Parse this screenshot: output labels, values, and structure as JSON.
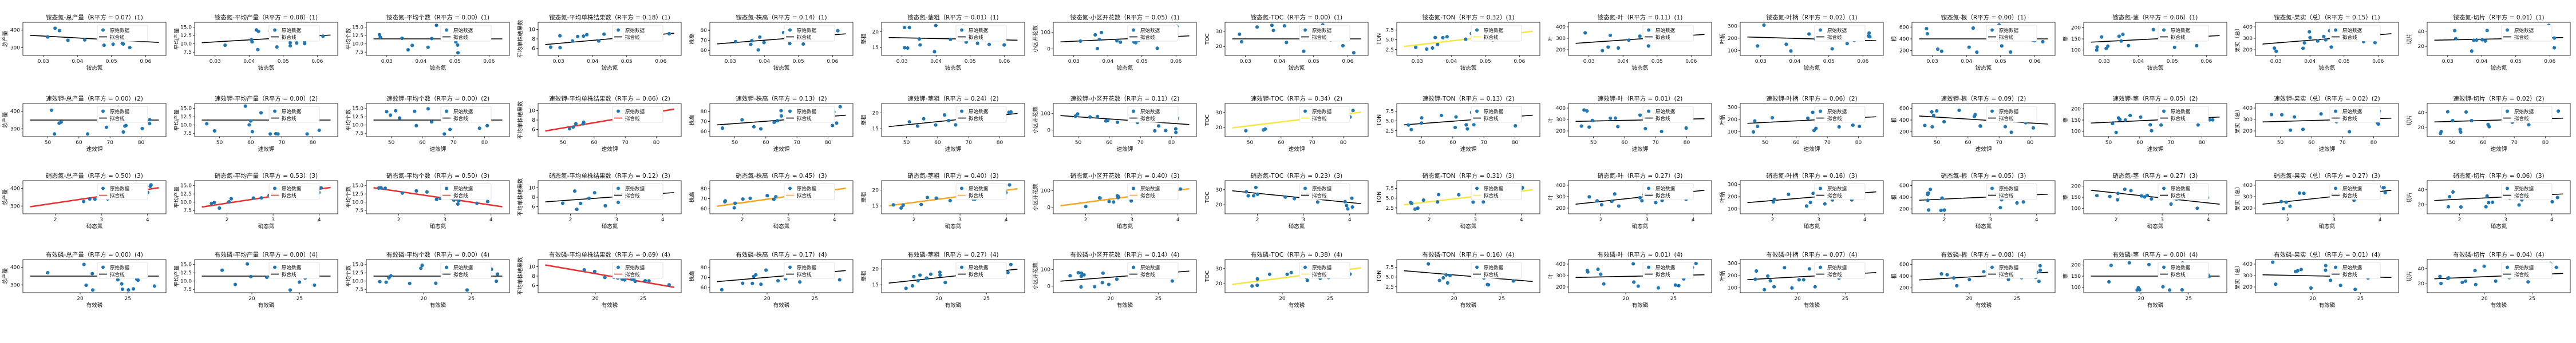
{
  "legend": {
    "raw_label": "原始数据",
    "fit_label": "拟合线"
  },
  "chart_data": {
    "type": "scatter",
    "rows": [
      {
        "xlabel": "铵态氮",
        "title_x": "铵态氮",
        "xticks": [
          "0.03",
          "0.04",
          "0.05",
          "0.06"
        ],
        "xlim": [
          0.024,
          0.066
        ]
      },
      {
        "xlabel": "速效钾",
        "title_x": "速效钾",
        "xticks": [
          "50",
          "60",
          "70",
          "80"
        ],
        "xlim": [
          42,
          88
        ]
      },
      {
        "xlabel": "硝态氮",
        "title_x": "硝态氮",
        "xticks": [
          "2",
          "3",
          "4"
        ],
        "xlim": [
          1.3,
          4.4
        ]
      },
      {
        "xlabel": "有效磷",
        "title_x": "有效磷",
        "xticks": [
          "20",
          "25"
        ],
        "xlim": [
          14,
          29
        ]
      }
    ],
    "cols": [
      {
        "ylabel": "总产量",
        "title_y": "总产量",
        "yticks": [
          "300",
          "400"
        ],
        "ylim": [
          255,
          445
        ]
      },
      {
        "ylabel": "平均产量",
        "title_y": "平均产量",
        "yticks": [
          "7.5",
          "10.0",
          "12.5",
          "15.0"
        ],
        "ylim": [
          6.5,
          16.5
        ]
      },
      {
        "ylabel": "平均个数",
        "title_y": "平均个数",
        "yticks": [
          "7.5",
          "10.0",
          "12.5",
          "15.0"
        ],
        "ylim": [
          6.5,
          16.5
        ]
      },
      {
        "ylabel": "平均单株结果数",
        "title_y": "平均单株结果数",
        "yticks": [
          "6",
          "8",
          "10"
        ],
        "ylim": [
          4.5,
          11.5
        ]
      },
      {
        "ylabel": "株高",
        "title_y": "株高",
        "yticks": [
          "60",
          "70",
          "80"
        ],
        "ylim": [
          55,
          88
        ]
      },
      {
        "ylabel": "茎粗",
        "title_y": "茎粗",
        "yticks": [
          "15",
          "20"
        ],
        "ylim": [
          12.5,
          23
        ]
      },
      {
        "ylabel": "小区开花数",
        "title_y": "小区开花数",
        "yticks": [
          "0",
          "100"
        ],
        "ylim": [
          -40,
          160
        ]
      },
      {
        "ylabel": "TOC",
        "title_y": "TOC",
        "yticks": [
          "20",
          "30"
        ],
        "ylim": [
          14,
          36
        ]
      },
      {
        "ylabel": "TON",
        "title_y": "TON",
        "yticks": [
          "2.5",
          "5.0",
          "7.5"
        ],
        "ylim": [
          1,
          9.5
        ]
      },
      {
        "ylabel": "叶",
        "title_y": "叶",
        "yticks": [
          "200",
          "300",
          "400"
        ],
        "ylim": [
          150,
          440
        ]
      },
      {
        "ylabel": "叶柄",
        "title_y": "叶柄",
        "yticks": [
          "100",
          "200",
          "300"
        ],
        "ylim": [
          60,
          330
        ]
      },
      {
        "ylabel": "根",
        "title_y": "根",
        "yticks": [
          "200",
          "400",
          "600"
        ],
        "ylim": [
          120,
          680
        ]
      },
      {
        "ylabel": "茎",
        "title_y": "茎",
        "yticks": [
          "100",
          "150",
          "200"
        ],
        "ylim": [
          75,
          225
        ]
      },
      {
        "ylabel": "果实（总）",
        "title_y": "果实（总）",
        "yticks": [
          "200",
          "300",
          "400"
        ],
        "ylim": [
          150,
          440
        ]
      },
      {
        "ylabel": "切片",
        "title_y": "切片",
        "yticks": [
          "20",
          "40"
        ],
        "ylim": [
          8,
          52
        ]
      }
    ],
    "r2": [
      [
        "0.07",
        "0.08",
        "0.00",
        "0.18",
        "0.14",
        "0.01",
        "0.05",
        "0.00",
        "0.32",
        "0.11",
        "0.02",
        "0.00",
        "0.06",
        "0.15",
        "0.01"
      ],
      [
        "0.00",
        "0.00",
        "0.00",
        "0.66",
        "0.13",
        "0.24",
        "0.11",
        "0.34",
        "0.13",
        "0.01",
        "0.06",
        "0.09",
        "0.05",
        "0.02",
        "0.02"
      ],
      [
        "0.50",
        "0.53",
        "0.50",
        "0.12",
        "0.45",
        "0.40",
        "0.40",
        "0.23",
        "0.31",
        "0.27",
        "0.16",
        "0.05",
        "0.27",
        "0.27",
        "0.06"
      ],
      [
        "0.00",
        "0.00",
        "0.00",
        "0.69",
        "0.17",
        "0.27",
        "0.14",
        "0.38",
        "0.16",
        "0.01",
        "0.07",
        "0.08",
        "0.00",
        "0.01",
        "0.04"
      ]
    ],
    "row_index_labels": [
      "(1)",
      "(2)",
      "(3)",
      "(4)"
    ],
    "title_prefix": "R平方 = ",
    "fit_colors": {
      "0.66": "#e83030",
      "0.50": "#e83030",
      "0.53": "#e83030",
      "0.69": "#e83030",
      "0.45": "#f5a623",
      "0.40": "#f5a623",
      "0.32": "#f5e642",
      "0.34": "#f5e642",
      "0.31": "#f5e642",
      "0.38": "#f5e642",
      "0.27": "#000000"
    },
    "default_fit_color": "#000000",
    "point_color": "#1f77b4",
    "fit_width_strong": 2.5,
    "series_desc": "15 scatter points per panel (original data) plus a linear fit line"
  }
}
